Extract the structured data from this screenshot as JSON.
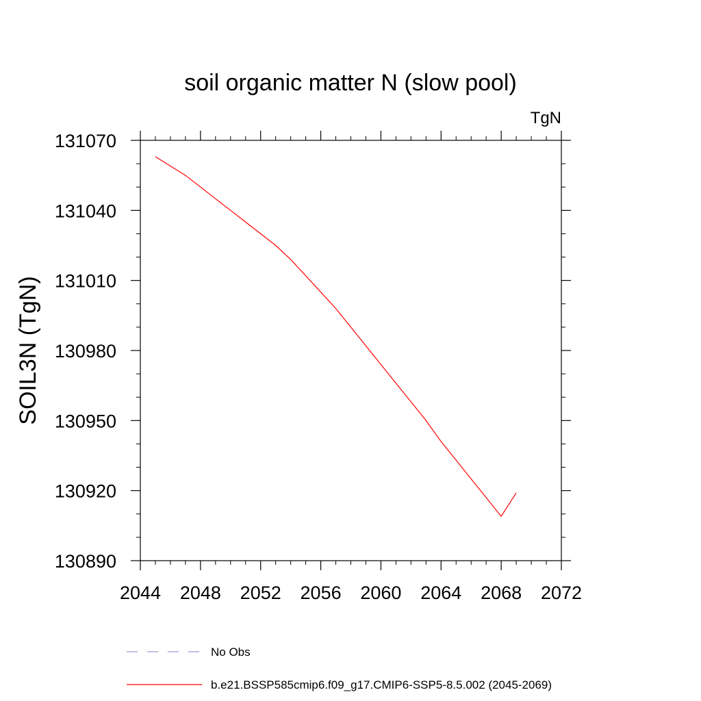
{
  "chart_data": {
    "type": "line",
    "title": "soil organic matter N (slow pool)",
    "units_label": "TgN",
    "ylabel": "SOIL3N  (TgN)",
    "xlabel": "",
    "xlim": [
      2044,
      2072
    ],
    "ylim": [
      130890,
      131070
    ],
    "x_ticks": [
      2044,
      2048,
      2052,
      2056,
      2060,
      2064,
      2068,
      2072
    ],
    "y_ticks": [
      130890,
      130920,
      130950,
      130980,
      131010,
      131040,
      131070
    ],
    "x_tick_labels": [
      "2044",
      "2048",
      "2052",
      "2056",
      "2060",
      "2064",
      "2068",
      "2072"
    ],
    "y_tick_labels": [
      "130890",
      "130920",
      "130950",
      "130980",
      "131010",
      "131040",
      "131070"
    ],
    "grid": false,
    "legend_position": "bottom",
    "series": [
      {
        "name": "b.e21.BSSP585cmip6.f09_g17.CMIP6-SSP5-8.5.002 (2045-2069)",
        "color": "#ff0000",
        "style": "solid",
        "x": [
          2045,
          2046,
          2047,
          2048,
          2049,
          2050,
          2051,
          2052,
          2053,
          2054,
          2055,
          2056,
          2057,
          2058,
          2059,
          2060,
          2061,
          2062,
          2063,
          2064,
          2065,
          2066,
          2067,
          2068,
          2069
        ],
        "values": [
          131063,
          131059,
          131055,
          131050,
          131045,
          131040,
          131035,
          131030,
          131025,
          131019,
          131012,
          131005,
          130998,
          130990,
          130982,
          130974,
          130966,
          130958,
          130950,
          130941,
          130933,
          130925,
          130917,
          130909,
          130919
        ]
      }
    ],
    "legend": [
      {
        "label": "No Obs",
        "color": "#9b9bd8",
        "style": "dashed"
      },
      {
        "label": "b.e21.BSSP585cmip6.f09_g17.CMIP6-SSP5-8.5.002 (2045-2069)",
        "color": "#ff0000",
        "style": "solid"
      }
    ]
  }
}
